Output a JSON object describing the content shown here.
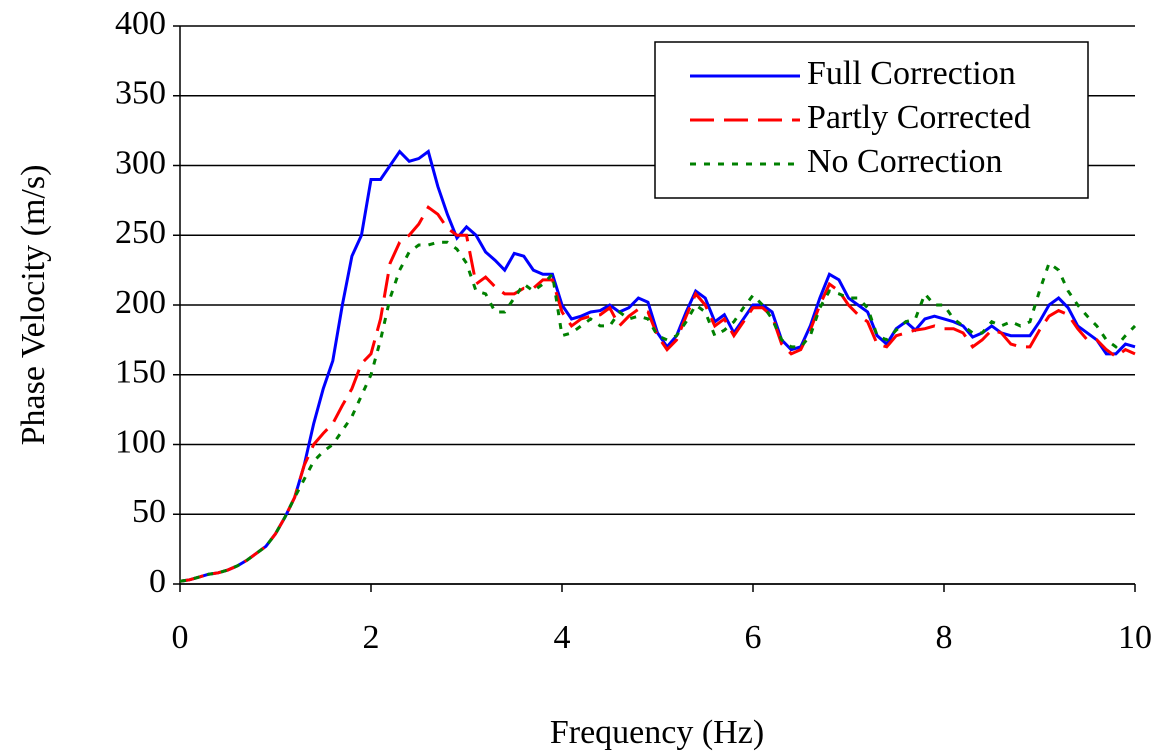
{
  "chart_data": {
    "type": "line",
    "xlabel": "Frequency (Hz)",
    "ylabel": "Phase Velocity (m/s)",
    "xlim": [
      0,
      10
    ],
    "xticks": [
      0,
      2,
      4,
      6,
      8,
      10
    ],
    "ylim": [
      0,
      400
    ],
    "yticks": [
      0,
      50,
      100,
      150,
      200,
      250,
      300,
      350,
      400
    ],
    "grid": true,
    "legend": "upper right",
    "x": [
      0,
      0.1,
      0.2,
      0.3,
      0.4,
      0.5,
      0.6,
      0.7,
      0.8,
      0.9,
      1,
      1.1,
      1.2,
      1.3,
      1.4,
      1.5,
      1.6,
      1.7,
      1.8,
      1.9,
      2,
      2.1,
      2.2,
      2.3,
      2.4,
      2.5,
      2.6,
      2.7,
      2.8,
      2.9,
      3,
      3.1,
      3.2,
      3.3,
      3.4,
      3.5,
      3.6,
      3.7,
      3.8,
      3.9,
      4,
      4.1,
      4.2,
      4.3,
      4.4,
      4.5,
      4.6,
      4.7,
      4.8,
      4.9,
      5,
      5.1,
      5.2,
      5.3,
      5.4,
      5.5,
      5.6,
      5.7,
      5.8,
      5.9,
      6,
      6.1,
      6.2,
      6.3,
      6.4,
      6.5,
      6.6,
      6.7,
      6.8,
      6.9,
      7,
      7.1,
      7.2,
      7.3,
      7.4,
      7.5,
      7.6,
      7.7,
      7.8,
      7.9,
      8,
      8.1,
      8.2,
      8.3,
      8.4,
      8.5,
      8.6,
      8.7,
      8.8,
      8.9,
      9,
      9.1,
      9.2,
      9.3,
      9.4,
      9.5,
      9.6,
      9.7,
      9.8,
      9.9,
      10
    ],
    "series": [
      {
        "name": "Full Correction",
        "color": "#0000ff",
        "style": "solid",
        "values": [
          2,
          3,
          5,
          7,
          8,
          10,
          13,
          17,
          22,
          27,
          36,
          48,
          62,
          85,
          115,
          140,
          160,
          200,
          235,
          250,
          290,
          290,
          300,
          310,
          303,
          305,
          310,
          285,
          265,
          248,
          256,
          250,
          238,
          232,
          225,
          237,
          235,
          225,
          222,
          222,
          200,
          190,
          192,
          195,
          196,
          200,
          195,
          198,
          205,
          202,
          180,
          170,
          178,
          195,
          210,
          205,
          188,
          193,
          180,
          190,
          200,
          200,
          195,
          175,
          168,
          170,
          185,
          205,
          222,
          218,
          205,
          200,
          195,
          178,
          172,
          183,
          188,
          182,
          190,
          192,
          190,
          188,
          185,
          177,
          180,
          185,
          180,
          178,
          178,
          178,
          188,
          200,
          205,
          198,
          185,
          180,
          175,
          165,
          165,
          172,
          170
        ]
      },
      {
        "name": "Partly Corrected",
        "color": "#ff0000",
        "style": "dashed",
        "values": [
          2,
          3,
          5,
          7,
          8,
          10,
          13,
          17,
          22,
          27,
          36,
          48,
          62,
          85,
          100,
          108,
          115,
          128,
          140,
          158,
          165,
          190,
          230,
          245,
          250,
          258,
          270,
          265,
          255,
          250,
          250,
          215,
          220,
          213,
          208,
          208,
          212,
          212,
          218,
          218,
          195,
          185,
          190,
          192,
          193,
          198,
          185,
          192,
          197,
          195,
          178,
          168,
          175,
          192,
          208,
          200,
          185,
          190,
          178,
          188,
          198,
          198,
          192,
          172,
          165,
          168,
          182,
          200,
          215,
          210,
          200,
          193,
          188,
          172,
          170,
          178,
          180,
          182,
          183,
          185,
          183,
          183,
          180,
          170,
          175,
          182,
          180,
          172,
          170,
          170,
          182,
          192,
          196,
          193,
          183,
          175,
          175,
          168,
          163,
          168,
          165
        ]
      },
      {
        "name": "No Correction",
        "color": "#008000",
        "style": "dotted",
        "values": [
          2,
          3,
          5,
          7,
          8,
          10,
          13,
          17,
          22,
          27,
          36,
          48,
          62,
          75,
          88,
          95,
          100,
          110,
          120,
          135,
          150,
          175,
          205,
          225,
          238,
          243,
          243,
          245,
          245,
          240,
          230,
          210,
          208,
          195,
          195,
          205,
          215,
          210,
          215,
          222,
          178,
          180,
          185,
          190,
          185,
          185,
          195,
          190,
          192,
          190,
          178,
          175,
          178,
          188,
          200,
          195,
          178,
          182,
          188,
          198,
          207,
          200,
          190,
          175,
          170,
          170,
          178,
          198,
          210,
          208,
          205,
          205,
          198,
          178,
          175,
          182,
          188,
          190,
          208,
          200,
          200,
          190,
          185,
          180,
          180,
          188,
          185,
          188,
          185,
          188,
          210,
          230,
          225,
          210,
          200,
          192,
          185,
          175,
          170,
          178,
          185
        ]
      }
    ]
  }
}
